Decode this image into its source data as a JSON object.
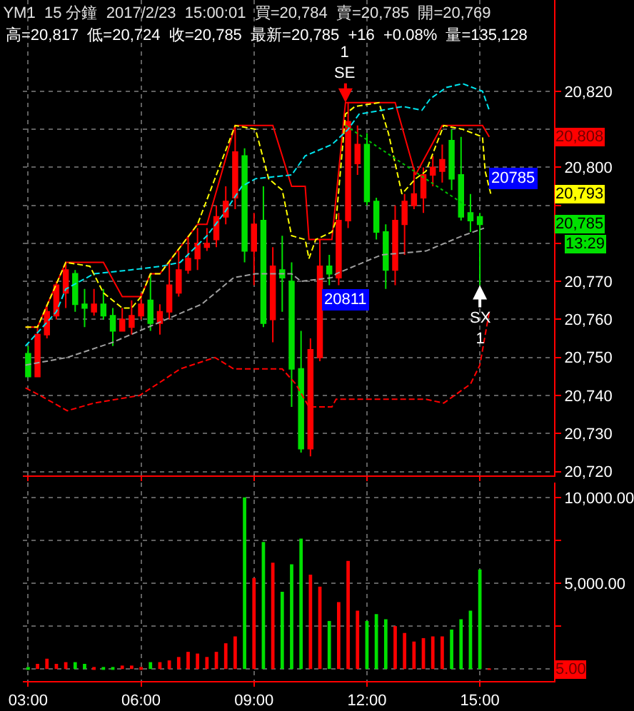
{
  "chart_data": [
    {
      "type": "candlestick",
      "title": "YM1  15 分鐘  2017/2/23  15:00:01  買=20,784  賣=20,785  開=20,769",
      "subtitle": "高=20,817  低=20,724  收=20,785  最新=20,785  +16  +0.08%  量=135,128",
      "x": [
        3.0,
        3.25,
        3.5,
        3.75,
        4.0,
        4.25,
        4.5,
        4.75,
        5.0,
        5.25,
        5.5,
        5.75,
        6.0,
        6.25,
        6.5,
        6.75,
        7.0,
        7.25,
        7.5,
        7.75,
        8.0,
        8.25,
        8.5,
        8.75,
        9.0,
        9.25,
        9.5,
        9.75,
        10.0,
        10.25,
        10.5,
        10.75,
        11.0,
        11.25,
        11.5,
        11.75,
        12.0,
        12.25,
        12.5,
        12.75,
        13.0,
        13.25,
        13.5,
        13.75,
        14.0,
        14.25,
        14.5,
        14.75,
        15.0
      ],
      "ohlc": [
        [
          20751,
          20753,
          20745,
          20745
        ],
        [
          20745,
          20758,
          20745,
          20756
        ],
        [
          20756,
          20764,
          20755,
          20762
        ],
        [
          20761,
          20770,
          20760,
          20769
        ],
        [
          20767,
          20775,
          20763,
          20773
        ],
        [
          20772,
          20773,
          20762,
          20764
        ],
        [
          20764,
          20768,
          20758,
          20763
        ],
        [
          20762,
          20768,
          20761,
          20764
        ],
        [
          20764,
          20768,
          20760,
          20761
        ],
        [
          20761,
          20763,
          20753,
          20757
        ],
        [
          20757,
          20763,
          20757,
          20760
        ],
        [
          20758,
          20765,
          20756,
          20761
        ],
        [
          20761,
          20767,
          20760,
          20764
        ],
        [
          20765,
          20772,
          20757,
          20759
        ],
        [
          20759,
          20764,
          20756,
          20762
        ],
        [
          20762,
          20775,
          20760,
          20769
        ],
        [
          20767,
          20778,
          20766,
          20773
        ],
        [
          20773,
          20782,
          20772,
          20776
        ],
        [
          20776,
          20784,
          20773,
          20780
        ],
        [
          20779,
          20784,
          20778,
          20780
        ],
        [
          20781,
          20790,
          20779,
          20787
        ],
        [
          20787,
          20795,
          20785,
          20791
        ],
        [
          20792,
          20811,
          20789,
          20804
        ],
        [
          20803,
          20805,
          20775,
          20778
        ],
        [
          20778,
          20788,
          20769,
          20785
        ],
        [
          20786,
          20795,
          20758,
          20759
        ],
        [
          20760,
          20779,
          20754,
          20774
        ],
        [
          20773,
          20782,
          20762,
          20771
        ],
        [
          20770,
          20775,
          20737,
          20747
        ],
        [
          20747,
          20757,
          20725,
          20726
        ],
        [
          20726,
          20755,
          20724,
          20752
        ],
        [
          20750,
          20781,
          20749,
          20774
        ],
        [
          20774,
          20777,
          20769,
          20772
        ],
        [
          20771,
          20788,
          20769,
          20786
        ],
        [
          20786,
          20817,
          20784,
          20812
        ],
        [
          20801,
          20811,
          20798,
          20806
        ],
        [
          20806,
          20809,
          20790,
          20791
        ],
        [
          20791,
          20792,
          20781,
          20783
        ],
        [
          20783,
          20785,
          20768,
          20773
        ],
        [
          20773,
          20790,
          20769,
          20786
        ],
        [
          20785,
          20793,
          20777,
          20791
        ],
        [
          20790,
          20800,
          20789,
          20793
        ],
        [
          20792,
          20800,
          20788,
          20798
        ],
        [
          20798,
          20803,
          20795,
          20800
        ],
        [
          20799,
          20806,
          20796,
          20802
        ],
        [
          20807,
          20810,
          20794,
          20797
        ],
        [
          20798,
          20808,
          20786,
          20787
        ],
        [
          20788,
          20793,
          20783,
          20786
        ],
        [
          20787,
          20788,
          20769,
          20785
        ]
      ],
      "colors": [
        "#00e000",
        "#ff0000",
        "#ff0000",
        "#ff0000",
        "#ff0000",
        "#00e000",
        "#00e000",
        "#ff0000",
        "#00e000",
        "#00e000",
        "#ff0000",
        "#ff0000",
        "#ff0000",
        "#00e000",
        "#ff0000",
        "#ff0000",
        "#ff0000",
        "#ff0000",
        "#ff0000",
        "#ff0000",
        "#ff0000",
        "#ff0000",
        "#ff0000",
        "#00e000",
        "#ff0000",
        "#00e000",
        "#ff0000",
        "#00e000",
        "#00e000",
        "#00e000",
        "#ff0000",
        "#ff0000",
        "#00e000",
        "#ff0000",
        "#ff0000",
        "#ff0000",
        "#00e000",
        "#00e000",
        "#00e000",
        "#ff0000",
        "#ff0000",
        "#ff0000",
        "#ff0000",
        "#ff0000",
        "#ff0000",
        "#00e000",
        "#00e000",
        "#00e000",
        "#00e000"
      ],
      "series": [
        {
          "type": "line",
          "color": "#ff0000",
          "line_style": "solid",
          "x": [
            2.93,
            3.25,
            4.0,
            5.0,
            5.5,
            6.0,
            6.25,
            6.5,
            7.5,
            7.75,
            8.5,
            9.5,
            10.0,
            10.36,
            10.46,
            11.07,
            11.43,
            12.75,
            13.29,
            14.0,
            15.07,
            15.25
          ],
          "values": [
            20758,
            20758,
            20775,
            20775,
            20766,
            20766,
            20772,
            20772,
            20785,
            20785,
            20811,
            20811,
            20795,
            20795,
            20781,
            20781,
            20817,
            20817,
            20798,
            20811,
            20811,
            20808
          ]
        },
        {
          "type": "line",
          "color": "#ffff00",
          "line_style": "dashed",
          "x": [
            2.93,
            3.25,
            4.0,
            4.64,
            5.0,
            5.5,
            5.75,
            6.0,
            6.25,
            6.5,
            7.5,
            8.5,
            9.04,
            9.39,
            9.75,
            10.0,
            10.36,
            10.46,
            10.64,
            11.07,
            11.18,
            11.43,
            11.68,
            12.32,
            12.57,
            12.93,
            13.29,
            13.57,
            14.04,
            14.54,
            15.07,
            15.14,
            15.29
          ],
          "values": [
            20758,
            20758,
            20775,
            20774,
            20767,
            20763,
            20763,
            20766,
            20772,
            20772,
            20785,
            20811,
            20810,
            20797,
            20794,
            20782,
            20781,
            20776,
            20781,
            20783,
            20786,
            20814,
            20816,
            20817,
            20809,
            20793,
            20797,
            20799,
            20811,
            20810,
            20808,
            20799,
            20793
          ]
        },
        {
          "type": "line",
          "color": "#00e5ee",
          "line_style": "dashed",
          "x": [
            2.93,
            3.75,
            4.0,
            4.75,
            5.71,
            6.54,
            7.04,
            7.75,
            8.21,
            8.68,
            9.04,
            10.0,
            10.36,
            11.07,
            11.5,
            11.79,
            12.39,
            12.96,
            13.46,
            13.68,
            14.11,
            14.54,
            15.07,
            15.25
          ],
          "values": [
            20753,
            20762,
            20768,
            20772,
            20773,
            20774,
            20775,
            20782,
            20788,
            20795,
            20797,
            20798,
            20803,
            20806,
            20810,
            20814,
            20815,
            20816,
            20815,
            20818,
            20821,
            20822,
            20820,
            20815
          ]
        },
        {
          "type": "line",
          "color": "#a0a0a0",
          "line_style": "dashed",
          "x": [
            2.93,
            4.04,
            5.25,
            5.96,
            6.43,
            7.61,
            8.46,
            9.04,
            10.0,
            10.25,
            11.07,
            11.18,
            12.39,
            13.57,
            14.54,
            15.11
          ],
          "values": [
            20748,
            20750,
            20754,
            20757,
            20759,
            20764,
            20771,
            20772,
            20772,
            20770,
            20771,
            20772,
            20777,
            20778,
            20782,
            20784
          ]
        },
        {
          "type": "line",
          "color": "#ff0000",
          "line_style": "dashed",
          "x": [
            2.93,
            3.32,
            4.04,
            4.75,
            5.96,
            6.43,
            7.04,
            7.96,
            8.46,
            9.29,
            9.75,
            10.11,
            10.46,
            11.07,
            11.18,
            12.39,
            13.57,
            14.04,
            14.75,
            15.0,
            15.25
          ],
          "values": [
            20742,
            20740,
            20736,
            20738,
            20740,
            20743,
            20747,
            20750,
            20747,
            20747,
            20747,
            20743,
            20737,
            20737,
            20739,
            20739,
            20739,
            20738,
            20743,
            20748,
            20762
          ]
        },
        {
          "type": "line",
          "color": "#00c000",
          "line_style": "dotted",
          "x": [
            11.43,
            14.62
          ],
          "values": [
            20811,
            20790
          ]
        }
      ],
      "annotations": [
        {
          "text": "1\nSE",
          "x": 11.43,
          "y": 20817
        },
        {
          "text": "SX\n1",
          "x": 15.0,
          "y": 20769
        },
        {
          "text": "20811",
          "x": 11.43,
          "y": 20765
        },
        {
          "text": "20785",
          "x": 15.9,
          "y": 20797
        },
        {
          "text": "20,808",
          "y": 20808
        },
        {
          "text": "20,793",
          "y": 20793
        },
        {
          "text": "20,785",
          "y": 20785
        },
        "13:29"
      ],
      "xlim": [
        2.86,
        16.97
      ],
      "xticks": [
        {
          "value": 3,
          "label": null
        },
        {
          "value": 6,
          "label": null
        },
        {
          "value": 9,
          "label": null
        },
        {
          "value": 12,
          "label": null
        },
        {
          "value": 15,
          "label": null
        }
      ],
      "ylim": [
        20719,
        20844
      ],
      "yticks": [
        {
          "value": 20720,
          "label": "20,720"
        },
        {
          "value": 20730,
          "label": "20,730"
        },
        {
          "value": 20740,
          "label": "20,740"
        },
        {
          "value": 20750,
          "label": "20,750"
        },
        {
          "value": 20760,
          "label": "20,760"
        },
        {
          "value": 20770,
          "label": "20,770"
        },
        {
          "value": 20780,
          "label": null
        },
        {
          "value": 20790,
          "label": null
        },
        {
          "value": 20800,
          "label": "20,800"
        },
        {
          "value": 20810,
          "label": null
        },
        {
          "value": 20820,
          "label": "20,820"
        }
      ],
      "grid": true,
      "tick_labels": "y"
    },
    {
      "type": "bar",
      "x": [
        3.0,
        3.25,
        3.5,
        3.75,
        4.0,
        4.25,
        4.5,
        4.75,
        5.0,
        5.25,
        5.5,
        5.75,
        6.0,
        6.25,
        6.5,
        6.75,
        7.0,
        7.25,
        7.5,
        7.75,
        8.0,
        8.25,
        8.5,
        8.75,
        9.0,
        9.25,
        9.5,
        9.75,
        10.0,
        10.25,
        10.5,
        10.75,
        11.0,
        11.25,
        11.5,
        11.75,
        12.0,
        12.25,
        12.5,
        12.75,
        13.0,
        13.25,
        13.5,
        13.75,
        14.0,
        14.25,
        14.5,
        14.75,
        15.0,
        15.25
      ],
      "values": [
        100,
        300,
        600,
        300,
        400,
        400,
        300,
        100,
        100,
        100,
        200,
        200,
        100,
        400,
        400,
        500,
        700,
        1000,
        900,
        700,
        1000,
        1500,
        1900,
        10000,
        5300,
        7400,
        6200,
        4500,
        6100,
        7600,
        5500,
        4800,
        2800,
        3900,
        6300,
        3400,
        2800,
        3200,
        2900,
        2500,
        2100,
        1600,
        1800,
        1900,
        1900,
        2300,
        2900,
        3400,
        5800,
        5
      ],
      "colors": [
        "#00e000",
        "#ff0000",
        "#ff0000",
        "#ff0000",
        "#ff0000",
        "#00e000",
        "#00e000",
        "#ff0000",
        "#00e000",
        "#00e000",
        "#ff0000",
        "#ff0000",
        "#ff0000",
        "#00e000",
        "#ff0000",
        "#ff0000",
        "#ff0000",
        "#ff0000",
        "#ff0000",
        "#ff0000",
        "#ff0000",
        "#ff0000",
        "#ff0000",
        "#00e000",
        "#ff0000",
        "#00e000",
        "#ff0000",
        "#00e000",
        "#00e000",
        "#00e000",
        "#ff0000",
        "#ff0000",
        "#00e000",
        "#ff0000",
        "#ff0000",
        "#ff0000",
        "#00e000",
        "#00e000",
        "#00e000",
        "#ff0000",
        "#ff0000",
        "#ff0000",
        "#ff0000",
        "#ff0000",
        "#ff0000",
        "#00e000",
        "#00e000",
        "#00e000",
        "#00e000",
        "#ff0000"
      ],
      "annotations": [
        {
          "text": "5.00",
          "y": 5
        }
      ],
      "xlim": [
        2.86,
        16.97
      ],
      "xticks": [
        {
          "value": 3,
          "label": "03:00"
        },
        {
          "value": 6,
          "label": "06:00"
        },
        {
          "value": 9,
          "label": "09:00"
        },
        {
          "value": 12,
          "label": "12:00"
        },
        {
          "value": 15,
          "label": "15:00"
        }
      ],
      "ylim": [
        -700,
        10850
      ],
      "yticks": [
        {
          "value": 0,
          "label": null
        },
        {
          "value": 2500,
          "label": null
        },
        {
          "value": 5000,
          "label": "5,000.00"
        },
        {
          "value": 7500,
          "label": null
        },
        {
          "value": 10000,
          "label": "10,000.00"
        }
      ],
      "grid": true
    }
  ]
}
